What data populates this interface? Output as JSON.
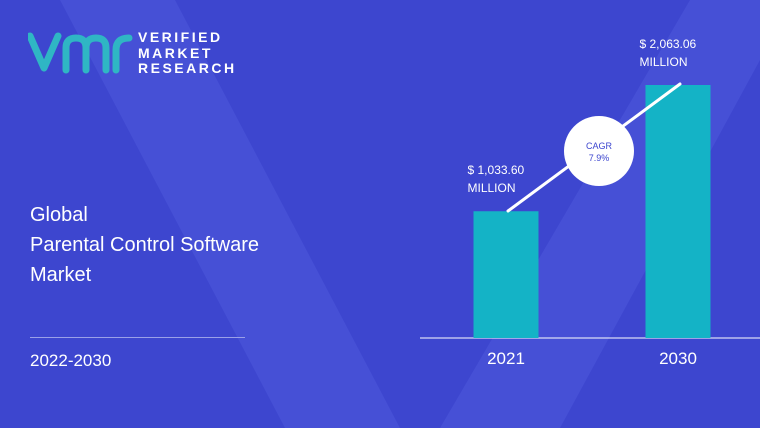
{
  "brand": {
    "line1": "VERIFIED",
    "line2": "MARKET",
    "line3": "RESEARCH",
    "logo_icon": "vmr-logo-icon",
    "logo_color": "#2fb6c4"
  },
  "title": {
    "line1": "Global",
    "line2": "Parental Control Software",
    "line3": "Market"
  },
  "period": "2022-2030",
  "colors": {
    "background": "#3d46cf",
    "bar": "#14b3c6",
    "text": "#ffffff"
  },
  "chart_data": {
    "type": "bar",
    "categories": [
      "2021",
      "2030"
    ],
    "values": [
      1033.6,
      2063.06
    ],
    "value_labels": [
      {
        "line1": "$ 1,033.60",
        "line2": "MILLION"
      },
      {
        "line1": "$ 2,063.06",
        "line2": "MILLION"
      }
    ],
    "annotation": {
      "line1": "CAGR",
      "line2": "7.9%"
    },
    "ylim": [
      0,
      2063.06
    ],
    "grid": false,
    "legend": "none"
  }
}
